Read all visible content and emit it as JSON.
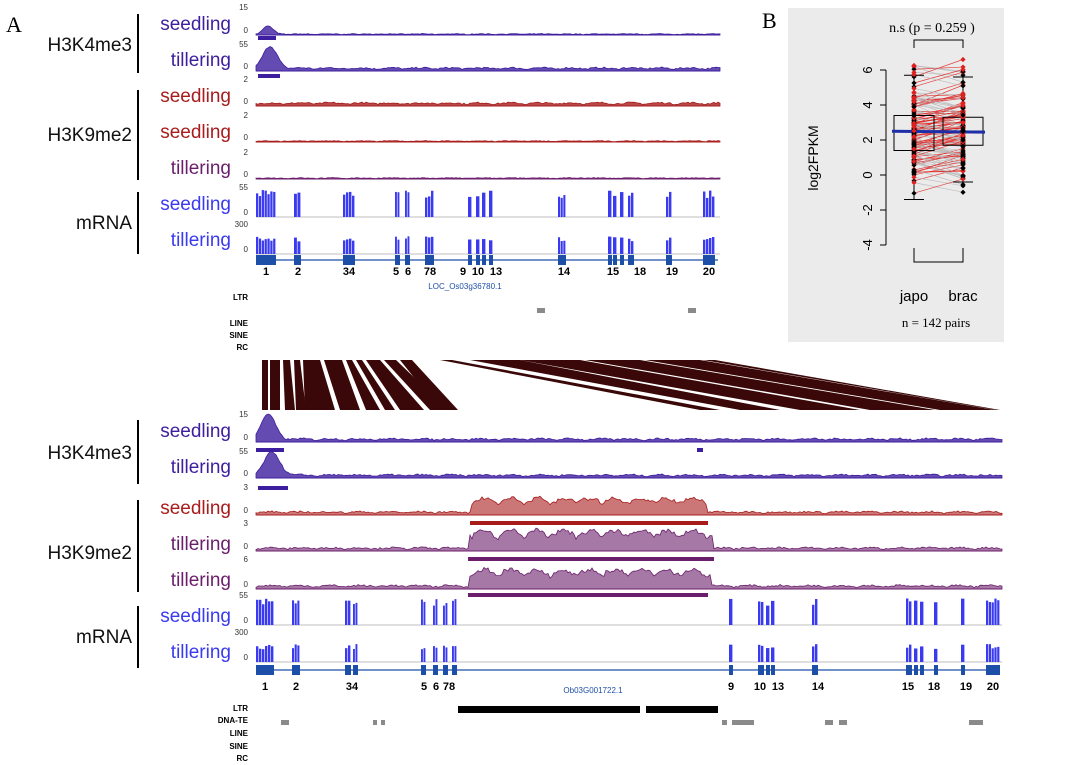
{
  "panel_labels": {
    "a": "A",
    "b": "B"
  },
  "chart_data": [
    {
      "type": "area",
      "panel": "A",
      "description_level": "genome browser tracks",
      "blocks": [
        {
          "gene_name": "LOC_Os03g36780.1",
          "tracks": [
            {
              "mark": "H3K4me3",
              "stage": "seedling",
              "ymax": "15",
              "yzero": "0",
              "color": "#3d1e9e",
              "kind": "chip"
            },
            {
              "mark": "H3K4me3",
              "stage": "tillering",
              "ymax": "55",
              "yzero": "0",
              "color": "#3d1e9e",
              "kind": "chip"
            },
            {
              "mark": "H3K9me2",
              "stage": "seedling",
              "ymax": "2",
              "yzero": "0",
              "color": "#a81c1c",
              "kind": "chip"
            },
            {
              "mark": "H3K9me2",
              "stage": "seedling",
              "ymax": "2",
              "yzero": "0",
              "color": "#a81c1c",
              "kind": "chip"
            },
            {
              "mark": "H3K9me2",
              "stage": "tillering",
              "ymax": "2",
              "yzero": "0",
              "color": "#6b1e6b",
              "kind": "chip"
            },
            {
              "mark": "mRNA",
              "stage": "seedling",
              "ymax": "55",
              "yzero": "0",
              "color": "#3a3af0",
              "kind": "rna"
            },
            {
              "mark": "mRNA",
              "stage": "tillering",
              "ymax": "300",
              "yzero": "0",
              "color": "#3a3af0",
              "kind": "rna"
            }
          ],
          "exon_labels": [
            "1",
            "2",
            "34",
            "5",
            "6",
            "78",
            "9",
            "10",
            "13",
            "14",
            "15",
            "18",
            "19",
            "20"
          ],
          "te_labels": [
            "LTR",
            "LINE",
            "SINE",
            "RC"
          ]
        },
        {
          "gene_name": "Ob03G001722.1",
          "tracks": [
            {
              "mark": "H3K4me3",
              "stage": "seedling",
              "ymax": "15",
              "yzero": "0",
              "color": "#3d1e9e",
              "kind": "chip"
            },
            {
              "mark": "H3K4me3",
              "stage": "tillering",
              "ymax": "55",
              "yzero": "0",
              "color": "#3d1e9e",
              "kind": "chip"
            },
            {
              "mark": "H3K9me2",
              "stage": "seedling",
              "ymax": "3",
              "yzero": "0",
              "color": "#a81c1c",
              "kind": "chip"
            },
            {
              "mark": "H3K9me2",
              "stage": "tillering",
              "ymax": "3",
              "yzero": "0",
              "color": "#6b1e6b",
              "kind": "chip"
            },
            {
              "mark": "H3K9me2",
              "stage": "tillering",
              "ymax": "6",
              "yzero": "0",
              "color": "#6b1e6b",
              "kind": "chip"
            },
            {
              "mark": "mRNA",
              "stage": "seedling",
              "ymax": "55",
              "yzero": "0",
              "color": "#3a3af0",
              "kind": "rna"
            },
            {
              "mark": "mRNA",
              "stage": "tillering",
              "ymax": "300",
              "yzero": "0",
              "color": "#3a3af0",
              "kind": "rna"
            }
          ],
          "exon_labels": [
            "1",
            "2",
            "34",
            "5",
            "6",
            "78",
            "9",
            "10",
            "13",
            "14",
            "15",
            "18",
            "19",
            "20"
          ],
          "te_labels": [
            "LTR",
            "DNA-TE",
            "LINE",
            "SINE",
            "RC"
          ]
        }
      ]
    },
    {
      "type": "box",
      "panel": "B",
      "title": "n.s (p = 0.259 )",
      "ylabel": "log2FPKM",
      "categories": [
        "japo",
        "brac"
      ],
      "footnote": "n = 142 pairs",
      "yticks": [
        "6",
        "4",
        "2",
        "0",
        "-2",
        "-4"
      ],
      "ylim": [
        -5,
        7
      ],
      "boxes": [
        {
          "name": "japo",
          "whisker_low": -1.4,
          "q1": 1.4,
          "median": 2.5,
          "q3": 3.4,
          "whisker_high": 5.7,
          "mean": 2.5
        },
        {
          "name": "brac",
          "whisker_low": -0.4,
          "q1": 1.7,
          "median": 2.5,
          "q3": 3.3,
          "whisker_high": 5.6,
          "mean": 2.45
        }
      ],
      "colors": {
        "up": "#e0201f",
        "down": "#b8b8b8",
        "mean": "#1e2ea8"
      },
      "background": "#ebebeb"
    }
  ]
}
